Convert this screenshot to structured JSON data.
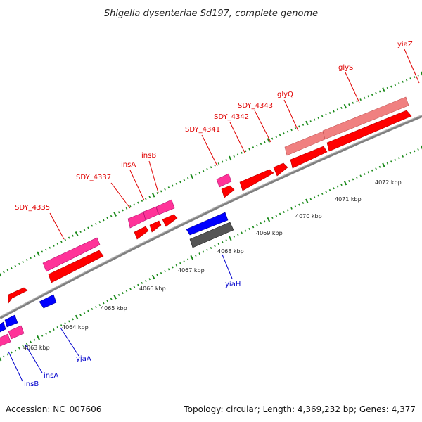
{
  "title": "Shigella dysenteriae Sd197, complete genome",
  "footer": {
    "accession": "Accession: NC_007606",
    "info": "Topology: circular; Length: 4,369,232 bp; Genes: 4,377"
  },
  "colors": {
    "forward_label": "#e00000",
    "reverse_label": "#0000cc",
    "red": "#ff0000",
    "pink": "#ff3399",
    "salmon": "#f08080",
    "blue": "#0000ff",
    "gray": "#555555",
    "tick": "#1a8a1a",
    "backbone": "#808080"
  },
  "kbp_labels": [
    "4063 kbp",
    "4064 kbp",
    "4065 kbp",
    "4066 kbp",
    "4067 kbp",
    "4068 kbp",
    "4069 kbp",
    "4070 kbp",
    "4071 kbp",
    "4072 kbp"
  ],
  "gene_labels": [
    {
      "text": "SDY_4335",
      "strand": "forward"
    },
    {
      "text": "SDY_4337",
      "strand": "forward"
    },
    {
      "text": "insA",
      "strand": "forward"
    },
    {
      "text": "insB",
      "strand": "forward"
    },
    {
      "text": "SDY_4341",
      "strand": "forward"
    },
    {
      "text": "SDY_4342",
      "strand": "forward"
    },
    {
      "text": "SDY_4343",
      "strand": "forward"
    },
    {
      "text": "glyQ",
      "strand": "forward"
    },
    {
      "text": "glyS",
      "strand": "forward"
    },
    {
      "text": "yiaZ",
      "strand": "forward"
    },
    {
      "text": "yiaH",
      "strand": "reverse"
    },
    {
      "text": "yjaA",
      "strand": "reverse"
    },
    {
      "text": "insA",
      "strand": "reverse"
    },
    {
      "text": "insB",
      "strand": "reverse"
    }
  ]
}
